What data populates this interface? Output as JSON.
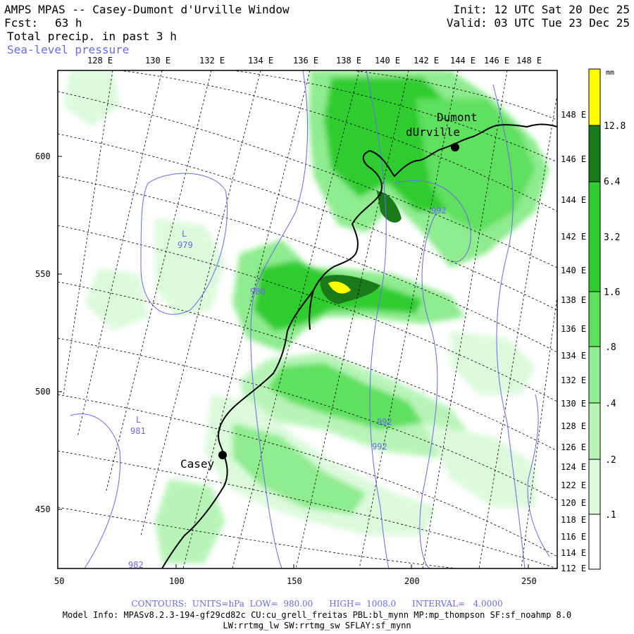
{
  "header": {
    "title": "AMPS MPAS -- Casey-Dumont d'Urville Window",
    "forecast_label": "Fcst:",
    "forecast_hours": "63 h",
    "field": "Total precip. in past 3 h",
    "overlay": "Sea-level pressure",
    "init": "Init: 12 UTC Sat 20 Dec 25",
    "valid": "Valid: 03 UTC Tue 23 Dec 25"
  },
  "axes": {
    "top_longitudes": [
      "128 E",
      "130 E",
      "132 E",
      "134 E",
      "136 E",
      "138 E",
      "140 E",
      "142 E",
      "144 E",
      "146 E",
      "148 E"
    ],
    "right_longitudes": [
      "148 E",
      "146 E",
      "144 E",
      "142 E",
      "140 E",
      "138 E",
      "136 E",
      "134 E",
      "132 E",
      "130 E",
      "128 E",
      "126 E",
      "124 E",
      "122 E",
      "120 E",
      "118 E",
      "116 E",
      "114 E",
      "112 E"
    ],
    "left_ticks": [
      "600",
      "550",
      "500",
      "450"
    ],
    "bottom_ticks": [
      "50",
      "100",
      "150",
      "200",
      "250"
    ]
  },
  "colorbar": {
    "unit": "mm",
    "levels": [
      "12.8",
      "6.4",
      "3.2",
      "1.6",
      ".8",
      ".4",
      ".2",
      ".1"
    ],
    "colors": [
      "#ffff00",
      "#1a7a1a",
      "#2ecc2e",
      "#5ee05e",
      "#8fec8f",
      "#b8f4b8",
      "#dcfadc",
      "#ffffff"
    ]
  },
  "stations": [
    {
      "name_line1": "Dumont",
      "name_line2": "dUrville"
    },
    {
      "name_line1": "Casey",
      "name_line2": ""
    }
  ],
  "pressure_labels": [
    {
      "text": "L"
    },
    {
      "text": "979"
    },
    {
      "text": "980"
    },
    {
      "text": "992"
    },
    {
      "text": "L"
    },
    {
      "text": "981"
    },
    {
      "text": "992"
    },
    {
      "text": "992"
    },
    {
      "text": "982"
    }
  ],
  "footer": {
    "contours": "CONTOURS:  UNITS=hPa  LOW=  980.00      HIGH=  1008.0      INTERVAL=   4.0000",
    "model_info": "Model Info: MPASv8.2.3-194-gf29cd82c CU:cu_grell_freitas PBL:bl_mynn MP:mp_thompson SF:sf_noahmp 8.0",
    "model_info_2": "LW:rrtmg_lw SW:rrtmg_sw SFLAY:sf_mynn"
  }
}
